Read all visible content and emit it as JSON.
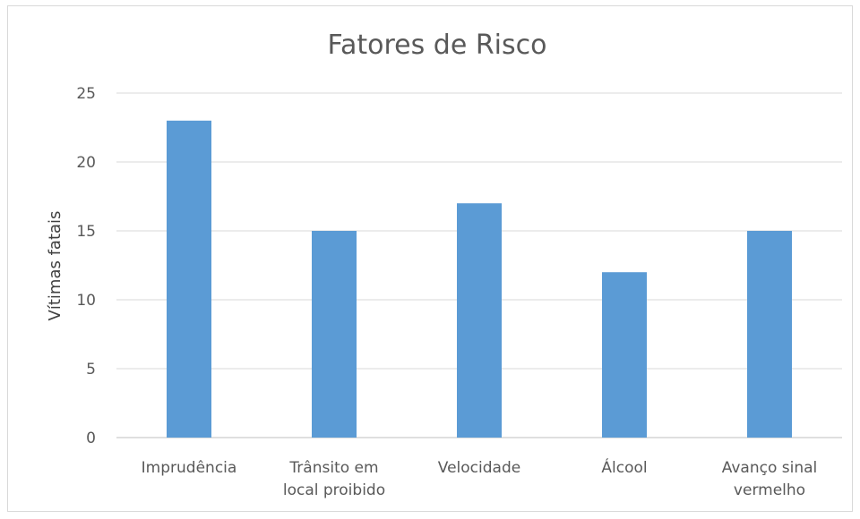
{
  "chart_data": {
    "type": "bar",
    "title": "Fatores de Risco",
    "xlabel": "",
    "ylabel": "Vítimas fatais",
    "categories": [
      [
        "Imprudência"
      ],
      [
        "Trânsito em",
        "local proibido"
      ],
      [
        "Velocidade"
      ],
      [
        "Álcool"
      ],
      [
        "Avanço sinal",
        "vermelho"
      ]
    ],
    "values": [
      23,
      15,
      17,
      12,
      15
    ],
    "ylim": [
      0,
      25
    ],
    "yticks": [
      0,
      5,
      10,
      15,
      20,
      25
    ],
    "grid": true,
    "legend": "none",
    "colors": {
      "bar": "#5b9bd5",
      "grid": "#d9d9d9",
      "text": "#595959"
    }
  }
}
